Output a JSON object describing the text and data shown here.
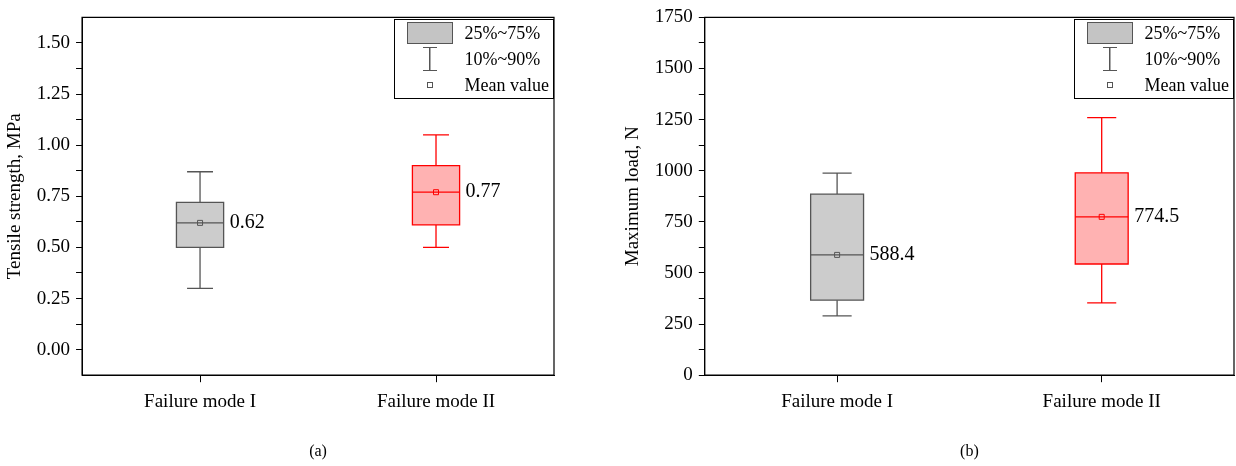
{
  "chart_data": [
    {
      "type": "box",
      "title": "(a)",
      "ylabel": "Tensile strength, MPa",
      "categories": [
        "Failure mode I",
        "Failure mode II"
      ],
      "colors": [
        "#555555",
        "#ff0000"
      ],
      "boxes": [
        {
          "low": 0.3,
          "q1": 0.5,
          "median": 0.62,
          "q3": 0.72,
          "high": 0.87,
          "mean": 0.62
        },
        {
          "low": 0.5,
          "q1": 0.61,
          "median": 0.77,
          "q3": 0.9,
          "high": 1.05,
          "mean": 0.77
        }
      ],
      "ylim": [
        -0.125,
        1.625
      ],
      "yticks": [
        {
          "value": 0,
          "label": "0.00"
        },
        {
          "value": 0.125,
          "label": null
        },
        {
          "value": 0.25,
          "label": "0.25"
        },
        {
          "value": 0.375,
          "label": null
        },
        {
          "value": 0.5,
          "label": "0.50"
        },
        {
          "value": 0.625,
          "label": null
        },
        {
          "value": 0.75,
          "label": "0.75"
        },
        {
          "value": 0.875,
          "label": null
        },
        {
          "value": 1,
          "label": "1.00"
        },
        {
          "value": 1.125,
          "label": null
        },
        {
          "value": 1.25,
          "label": "1.25"
        },
        {
          "value": 1.375,
          "label": null
        },
        {
          "value": 1.5,
          "label": "1.50"
        }
      ],
      "annotations": [
        "25%~75%",
        "10%~90%",
        "Mean value",
        {
          "text": "0.62",
          "x": "Failure mode I",
          "y": 0.62
        },
        {
          "text": "0.77",
          "x": "Failure mode II",
          "y": 0.77
        }
      ]
    },
    {
      "type": "box",
      "title": "(b)",
      "ylabel": "Maximum load, N",
      "categories": [
        "Failure mode I",
        "Failure mode II"
      ],
      "colors": [
        "#555555",
        "#ff0000"
      ],
      "boxes": [
        {
          "low": 290,
          "q1": 367,
          "median": 588.4,
          "q3": 886,
          "high": 988,
          "mean": 588.4
        },
        {
          "low": 354,
          "q1": 544,
          "median": 774.5,
          "q3": 990,
          "high": 1260,
          "mean": 774.5
        }
      ],
      "ylim": [
        0,
        1750
      ],
      "yticks": [
        0,
        {
          "value": 125,
          "label": null
        },
        250,
        {
          "value": 375,
          "label": null
        },
        500,
        {
          "value": 625,
          "label": null
        },
        750,
        {
          "value": 875,
          "label": null
        },
        1000,
        {
          "value": 1125,
          "label": null
        },
        1250,
        {
          "value": 1375,
          "label": null
        },
        1500,
        {
          "value": 1625,
          "label": null
        },
        1750
      ],
      "annotations": [
        "25%~75%",
        "10%~90%",
        "Mean value",
        {
          "text": "588.4",
          "x": "Failure mode I",
          "y": 588.4
        },
        {
          "text": "774.5",
          "x": "Failure mode II",
          "y": 774.5
        }
      ]
    }
  ]
}
